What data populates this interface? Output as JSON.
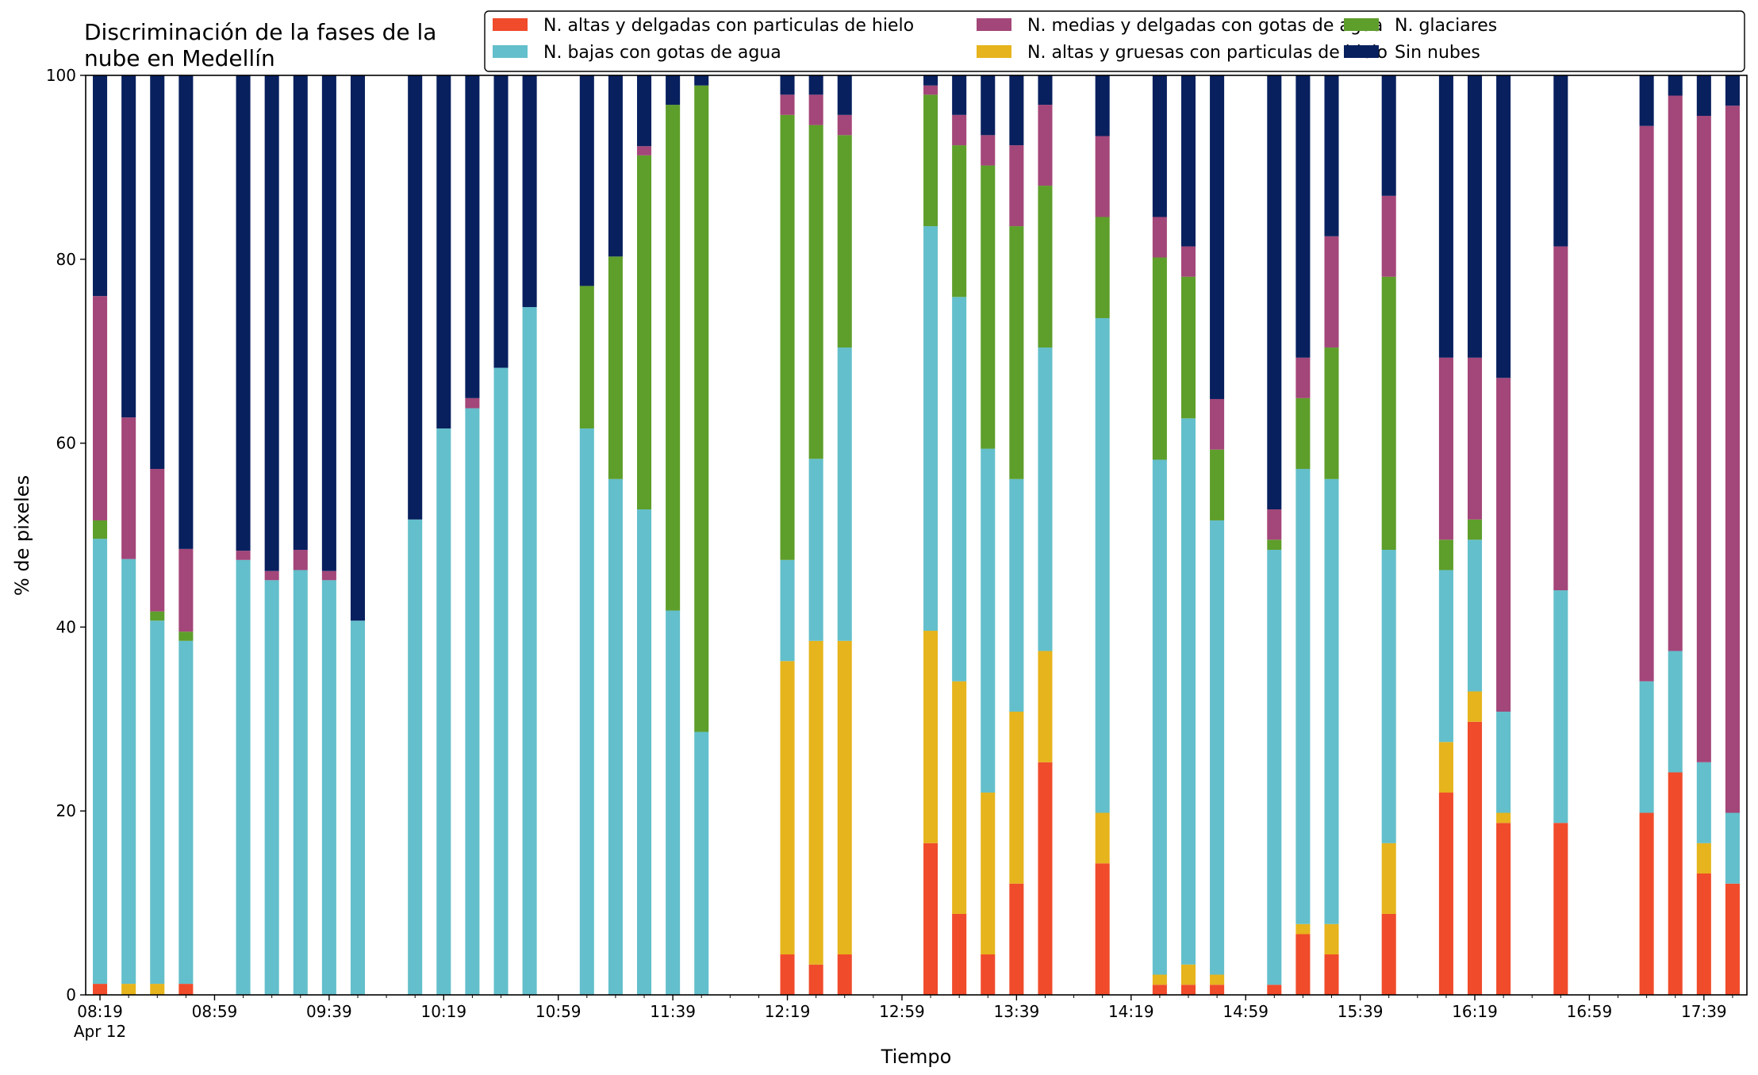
{
  "chart_data": {
    "type": "bar",
    "stacked": true,
    "title_lines": [
      "Discriminación de la fases de la",
      "nube en Medellín"
    ],
    "xlabel": "Tiempo",
    "ylabel": "% de pixeles",
    "ylim": [
      0,
      100
    ],
    "yticks": [
      "0",
      "20",
      "40",
      "60",
      "80",
      "100"
    ],
    "xlim_minutes": [
      494,
      1074
    ],
    "xtick_labels": [
      {
        "minute": 499,
        "text": "08:19",
        "sub": "Apr 12"
      },
      {
        "minute": 539,
        "text": "08:59"
      },
      {
        "minute": 579,
        "text": "09:39"
      },
      {
        "minute": 619,
        "text": "10:19"
      },
      {
        "minute": 659,
        "text": "10:59"
      },
      {
        "minute": 699,
        "text": "11:39"
      },
      {
        "minute": 739,
        "text": "12:19"
      },
      {
        "minute": 779,
        "text": "12:59"
      },
      {
        "minute": 819,
        "text": "13:39"
      },
      {
        "minute": 859,
        "text": "14:19"
      },
      {
        "minute": 899,
        "text": "14:59"
      },
      {
        "minute": 939,
        "text": "15:39"
      },
      {
        "minute": 979,
        "text": "16:19"
      },
      {
        "minute": 1019,
        "text": "16:59"
      },
      {
        "minute": 1059,
        "text": "17:39"
      }
    ],
    "minor_tick_step_minutes": 10,
    "grid": false,
    "legend_position": "top-right",
    "bar_width_minutes": 5,
    "series": [
      {
        "name": "N. altas y delgadas con particulas de hielo",
        "color": "#f04b2b"
      },
      {
        "name": "N. altas y gruesas con particulas de hielo",
        "color": "#e6b41c"
      },
      {
        "name": "N. bajas con gotas de agua",
        "color": "#63bfcb"
      },
      {
        "name": "N. glaciares",
        "color": "#5e9e2b"
      },
      {
        "name": "N. medias y delgadas con gotas de agua",
        "color": "#a34679"
      },
      {
        "name": "Sin nubes",
        "color": "#08205e"
      }
    ],
    "legend_order": [
      0,
      2,
      4,
      1,
      3,
      5
    ],
    "bars": [
      {
        "minute": 499,
        "values": [
          1.2,
          0,
          48.4,
          2.0,
          24.4,
          24.0
        ]
      },
      {
        "minute": 509,
        "values": [
          0,
          1.2,
          46.2,
          0,
          15.4,
          37.2
        ]
      },
      {
        "minute": 519,
        "values": [
          0,
          1.2,
          39.5,
          1.0,
          15.5,
          42.8
        ]
      },
      {
        "minute": 529,
        "values": [
          1.2,
          0,
          37.3,
          1.0,
          9.0,
          51.5
        ]
      },
      {
        "minute": 549,
        "values": [
          0,
          0,
          47.3,
          0,
          1.0,
          51.7
        ]
      },
      {
        "minute": 559,
        "values": [
          0,
          0,
          45.1,
          0,
          1.0,
          53.9
        ]
      },
      {
        "minute": 569,
        "values": [
          0,
          0,
          46.2,
          0,
          2.2,
          51.6
        ]
      },
      {
        "minute": 579,
        "values": [
          0,
          0,
          45.1,
          0,
          1.0,
          53.9
        ]
      },
      {
        "minute": 589,
        "values": [
          0,
          0,
          40.7,
          0,
          0,
          59.3
        ]
      },
      {
        "minute": 609,
        "values": [
          0,
          0,
          51.7,
          0,
          0,
          48.3
        ]
      },
      {
        "minute": 619,
        "values": [
          0,
          0,
          61.6,
          0,
          0,
          38.4
        ]
      },
      {
        "minute": 629,
        "values": [
          0,
          0,
          63.8,
          0,
          1.1,
          35.1
        ]
      },
      {
        "minute": 639,
        "values": [
          0,
          0,
          68.2,
          0,
          0,
          31.8
        ]
      },
      {
        "minute": 649,
        "values": [
          0,
          0,
          74.8,
          0,
          0,
          25.2
        ]
      },
      {
        "minute": 669,
        "values": [
          0,
          0,
          61.6,
          15.5,
          0,
          22.9
        ]
      },
      {
        "minute": 679,
        "values": [
          0,
          0,
          56.1,
          24.2,
          0,
          19.7
        ]
      },
      {
        "minute": 689,
        "values": [
          0,
          0,
          52.8,
          38.5,
          1.0,
          7.7
        ]
      },
      {
        "minute": 699,
        "values": [
          0,
          0,
          41.8,
          55.0,
          0,
          3.2
        ]
      },
      {
        "minute": 709,
        "values": [
          0,
          0,
          28.6,
          70.3,
          0,
          1.1
        ]
      },
      {
        "minute": 739,
        "values": [
          4.4,
          31.9,
          11.0,
          48.4,
          2.2,
          2.1
        ]
      },
      {
        "minute": 749,
        "values": [
          3.3,
          35.2,
          19.8,
          36.3,
          3.3,
          2.1
        ]
      },
      {
        "minute": 759,
        "values": [
          4.4,
          34.1,
          31.9,
          23.1,
          2.2,
          4.3
        ]
      },
      {
        "minute": 789,
        "values": [
          16.5,
          23.1,
          44.0,
          14.3,
          1.0,
          1.1
        ]
      },
      {
        "minute": 799,
        "values": [
          8.8,
          25.3,
          41.8,
          16.5,
          3.3,
          4.3
        ]
      },
      {
        "minute": 809,
        "values": [
          4.4,
          17.6,
          37.4,
          30.8,
          3.3,
          6.5
        ]
      },
      {
        "minute": 819,
        "values": [
          12.1,
          18.7,
          25.3,
          27.5,
          8.8,
          7.6
        ]
      },
      {
        "minute": 829,
        "values": [
          25.3,
          12.1,
          33.0,
          17.6,
          8.8,
          3.2
        ]
      },
      {
        "minute": 849,
        "values": [
          14.3,
          5.5,
          53.8,
          11.0,
          8.8,
          6.6
        ]
      },
      {
        "minute": 869,
        "values": [
          1.1,
          1.1,
          56.0,
          22.0,
          4.4,
          15.4
        ]
      },
      {
        "minute": 879,
        "values": [
          1.1,
          2.2,
          59.4,
          15.4,
          3.3,
          18.6
        ]
      },
      {
        "minute": 889,
        "values": [
          1.1,
          1.1,
          49.4,
          7.7,
          5.5,
          35.2
        ]
      },
      {
        "minute": 909,
        "values": [
          1.1,
          0,
          47.3,
          1.1,
          3.3,
          47.2
        ]
      },
      {
        "minute": 919,
        "values": [
          6.6,
          1.1,
          49.5,
          7.7,
          4.4,
          30.7
        ]
      },
      {
        "minute": 929,
        "values": [
          4.4,
          3.3,
          48.4,
          14.3,
          12.1,
          17.5
        ]
      },
      {
        "minute": 949,
        "values": [
          8.8,
          7.7,
          31.9,
          29.7,
          8.8,
          13.1
        ]
      },
      {
        "minute": 969,
        "values": [
          22.0,
          5.5,
          18.7,
          3.3,
          19.8,
          30.7
        ]
      },
      {
        "minute": 979,
        "values": [
          29.7,
          3.3,
          16.5,
          2.2,
          17.6,
          30.7
        ]
      },
      {
        "minute": 989,
        "values": [
          18.7,
          1.1,
          11.0,
          0,
          36.3,
          32.9
        ]
      },
      {
        "minute": 1009,
        "values": [
          18.7,
          0,
          25.3,
          0,
          37.4,
          18.6
        ]
      },
      {
        "minute": 1039,
        "values": [
          19.8,
          0,
          14.3,
          0,
          60.4,
          5.5
        ]
      },
      {
        "minute": 1049,
        "values": [
          24.2,
          0,
          13.2,
          0,
          60.4,
          2.2
        ]
      },
      {
        "minute": 1059,
        "values": [
          13.2,
          3.3,
          8.8,
          0,
          70.3,
          4.4
        ]
      },
      {
        "minute": 1069,
        "values": [
          12.1,
          0,
          7.7,
          0,
          76.9,
          3.3
        ]
      }
    ]
  }
}
